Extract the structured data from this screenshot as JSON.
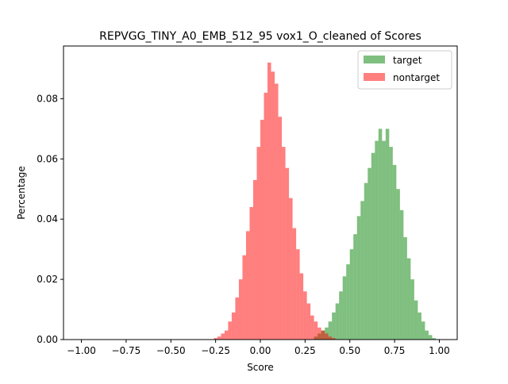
{
  "chart_data": {
    "type": "histogram",
    "title": "REPVGG_TINY_A0_EMB_512_95 vox1_O_cleaned of Scores",
    "xlabel": "Score",
    "ylabel": "Percentage",
    "xlim": [
      -1.1,
      1.1
    ],
    "ylim": [
      0.0,
      0.0975
    ],
    "x_ticks": [
      -1.0,
      -0.75,
      -0.5,
      -0.25,
      0.0,
      0.25,
      0.5,
      0.75,
      1.0
    ],
    "x_tick_labels": [
      "−1.00",
      "−0.75",
      "−0.50",
      "−0.25",
      "0.00",
      "0.25",
      "0.50",
      "0.75",
      "1.00"
    ],
    "y_ticks": [
      0.0,
      0.02,
      0.04,
      0.06,
      0.08
    ],
    "y_tick_labels": [
      "0.00",
      "0.02",
      "0.04",
      "0.06",
      "0.08"
    ],
    "legend_position": "top-right",
    "grid": false,
    "bin_width": 0.02,
    "series": [
      {
        "name": "target",
        "color": "#008000",
        "alpha": 0.5,
        "bins": [
          [
            0.3,
            0.001
          ],
          [
            0.32,
            0.002
          ],
          [
            0.34,
            0.003
          ],
          [
            0.36,
            0.004
          ],
          [
            0.38,
            0.006
          ],
          [
            0.4,
            0.009
          ],
          [
            0.42,
            0.012
          ],
          [
            0.44,
            0.016
          ],
          [
            0.46,
            0.021
          ],
          [
            0.48,
            0.025
          ],
          [
            0.5,
            0.03
          ],
          [
            0.52,
            0.035
          ],
          [
            0.54,
            0.041
          ],
          [
            0.56,
            0.046
          ],
          [
            0.58,
            0.052
          ],
          [
            0.6,
            0.057
          ],
          [
            0.62,
            0.062
          ],
          [
            0.64,
            0.066
          ],
          [
            0.66,
            0.07
          ],
          [
            0.68,
            0.066
          ],
          [
            0.7,
            0.07
          ],
          [
            0.72,
            0.064
          ],
          [
            0.74,
            0.058
          ],
          [
            0.76,
            0.05
          ],
          [
            0.78,
            0.043
          ],
          [
            0.8,
            0.034
          ],
          [
            0.82,
            0.027
          ],
          [
            0.84,
            0.02
          ],
          [
            0.86,
            0.013
          ],
          [
            0.88,
            0.009
          ],
          [
            0.9,
            0.006
          ],
          [
            0.92,
            0.003
          ],
          [
            0.94,
            0.0015
          ],
          [
            0.96,
            0.0005
          ]
        ]
      },
      {
        "name": "nontarget",
        "color": "#ff0000",
        "alpha": 0.5,
        "bins": [
          [
            -0.26,
            0.0005
          ],
          [
            -0.24,
            0.001
          ],
          [
            -0.22,
            0.002
          ],
          [
            -0.2,
            0.003
          ],
          [
            -0.18,
            0.006
          ],
          [
            -0.16,
            0.009
          ],
          [
            -0.14,
            0.014
          ],
          [
            -0.12,
            0.02
          ],
          [
            -0.1,
            0.028
          ],
          [
            -0.08,
            0.036
          ],
          [
            -0.06,
            0.044
          ],
          [
            -0.04,
            0.053
          ],
          [
            -0.02,
            0.064
          ],
          [
            0.0,
            0.073
          ],
          [
            0.02,
            0.082
          ],
          [
            0.04,
            0.092
          ],
          [
            0.06,
            0.089
          ],
          [
            0.08,
            0.085
          ],
          [
            0.1,
            0.074
          ],
          [
            0.12,
            0.064
          ],
          [
            0.14,
            0.057
          ],
          [
            0.16,
            0.047
          ],
          [
            0.18,
            0.037
          ],
          [
            0.2,
            0.03
          ],
          [
            0.22,
            0.022
          ],
          [
            0.24,
            0.016
          ],
          [
            0.26,
            0.012
          ],
          [
            0.28,
            0.008
          ],
          [
            0.3,
            0.006
          ],
          [
            0.32,
            0.004
          ],
          [
            0.34,
            0.003
          ],
          [
            0.36,
            0.002
          ],
          [
            0.38,
            0.001
          ],
          [
            0.4,
            0.0005
          ]
        ]
      }
    ]
  }
}
